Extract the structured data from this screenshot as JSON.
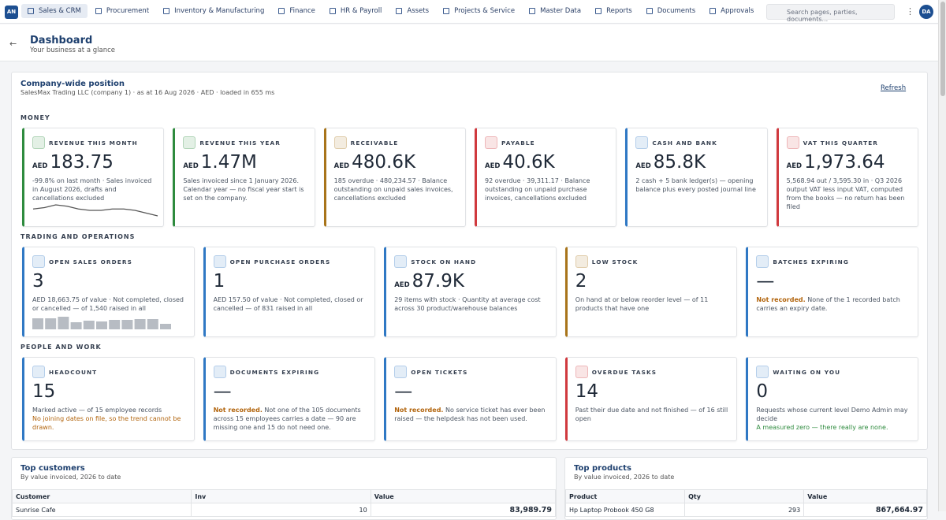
{
  "nav": {
    "brand": "AN",
    "items": [
      "Sales & CRM",
      "Procurement",
      "Inventory & Manufacturing",
      "Finance",
      "HR & Payroll",
      "Assets",
      "Projects & Service",
      "Master Data",
      "Reports",
      "Documents",
      "Approvals"
    ],
    "search": "Search pages, parties, documents...",
    "avatar": "DA"
  },
  "header": {
    "title": "Dashboard",
    "subtitle": "Your business at a glance"
  },
  "position": {
    "title": "Company-wide position",
    "meta": "SalesMax Trading LLC (company 1) · as at 16 Aug 2026 · AED · loaded in 655 ms",
    "refresh": "Refresh"
  },
  "sections": [
    {
      "title": "MONEY",
      "cards": [
        {
          "label": "REVENUE THIS MONTH",
          "currency": "AED",
          "value": "183.75",
          "desc": "-99.8% on last month · Sales invoiced in August 2026, drafts and cancellations excluded",
          "color": "#2e8b3e",
          "sparkline": [
            5,
            6,
            8,
            7,
            5,
            4,
            4,
            5,
            5,
            4,
            2,
            0
          ]
        },
        {
          "label": "REVENUE THIS YEAR",
          "currency": "AED",
          "value": "1.47M",
          "desc": "Sales invoiced since 1 January 2026. Calendar year — no fiscal year start is set on the company.",
          "color": "#2e8b3e"
        },
        {
          "label": "RECEIVABLE",
          "currency": "AED",
          "value": "480.6K",
          "desc": "185 overdue · 480,234.57 · Balance outstanding on unpaid sales invoices, cancellations excluded",
          "color": "#a8741a"
        },
        {
          "label": "PAYABLE",
          "currency": "AED",
          "value": "40.6K",
          "desc": "92 overdue · 39,311.17 · Balance outstanding on unpaid purchase invoices, cancellations excluded",
          "color": "#d0393e"
        },
        {
          "label": "CASH AND BANK",
          "currency": "AED",
          "value": "85.8K",
          "desc": "2 cash + 5 bank ledger(s) — opening balance plus every posted journal line",
          "color": "#2f78c4"
        },
        {
          "label": "VAT THIS QUARTER",
          "currency": "AED",
          "value": "1,973.64",
          "desc": "5,568.94 out / 3,595.30 in · Q3 2026 output VAT less input VAT, computed from the books — no return has been filed",
          "color": "#d0393e"
        }
      ]
    },
    {
      "title": "TRADING AND OPERATIONS",
      "cards": [
        {
          "label": "OPEN SALES ORDERS",
          "value": "3",
          "desc": "AED 18,663.75 of value · Not completed, closed or cancelled — of 1,540 raised in all",
          "color": "#2f78c4",
          "bars": [
            14,
            14,
            16,
            9,
            11,
            10,
            12,
            12,
            13,
            13,
            7
          ]
        },
        {
          "label": "OPEN PURCHASE ORDERS",
          "value": "1",
          "desc": "AED 157.50 of value · Not completed, closed or cancelled — of 831 raised in all",
          "color": "#2f78c4"
        },
        {
          "label": "STOCK ON HAND",
          "currency": "AED",
          "value": "87.9K",
          "desc": "29 items with stock · Quantity at average cost across 30 product/warehouse balances",
          "color": "#2f78c4"
        },
        {
          "label": "LOW STOCK",
          "value": "2",
          "desc": "On hand at or below reorder level — of 11 products that have one",
          "color": "#a8741a"
        },
        {
          "label": "BATCHES EXPIRING",
          "value": "—",
          "note": "Not recorded.",
          "desc": "None of the 1 recorded batch carries an expiry date.",
          "color": "#2f78c4"
        }
      ]
    },
    {
      "title": "PEOPLE AND WORK",
      "cards": [
        {
          "label": "HEADCOUNT",
          "value": "15",
          "desc": "Marked active — of 15 employee records",
          "footnote": "No joining dates on file, so the trend cannot be drawn.",
          "footnote_color": "#b2650e",
          "color": "#2f78c4"
        },
        {
          "label": "DOCUMENTS EXPIRING",
          "value": "—",
          "note": "Not recorded.",
          "desc": "Not one of the 105 documents across 15 employees carries a date — 90 are missing one and 15 do not need one.",
          "color": "#2f78c4"
        },
        {
          "label": "OPEN TICKETS",
          "value": "—",
          "note": "Not recorded.",
          "desc": "No service ticket has ever been raised — the helpdesk has not been used.",
          "color": "#2f78c4"
        },
        {
          "label": "OVERDUE TASKS",
          "value": "14",
          "desc": "Past their due date and not finished — of 16 still open",
          "color": "#d0393e"
        },
        {
          "label": "WAITING ON YOU",
          "value": "0",
          "desc": "Requests whose current level Demo Admin may decide",
          "footnote": "A measured zero — there really are none.",
          "footnote_color": "#2e8b3e",
          "color": "#2f78c4"
        }
      ]
    }
  ],
  "tables": [
    {
      "title": "Top customers",
      "subtitle": "By value invoiced, 2026 to date",
      "columns": [
        "Customer",
        "Inv",
        "Value"
      ],
      "rows": [
        [
          "Sunrise Cafe",
          "10",
          "83,989.79"
        ]
      ]
    },
    {
      "title": "Top products",
      "subtitle": "By value invoiced, 2026 to date",
      "columns": [
        "Product",
        "Qty",
        "Value"
      ],
      "rows": [
        [
          "Hp Laptop Probook 450 G8",
          "293",
          "867,664.97"
        ]
      ]
    }
  ]
}
